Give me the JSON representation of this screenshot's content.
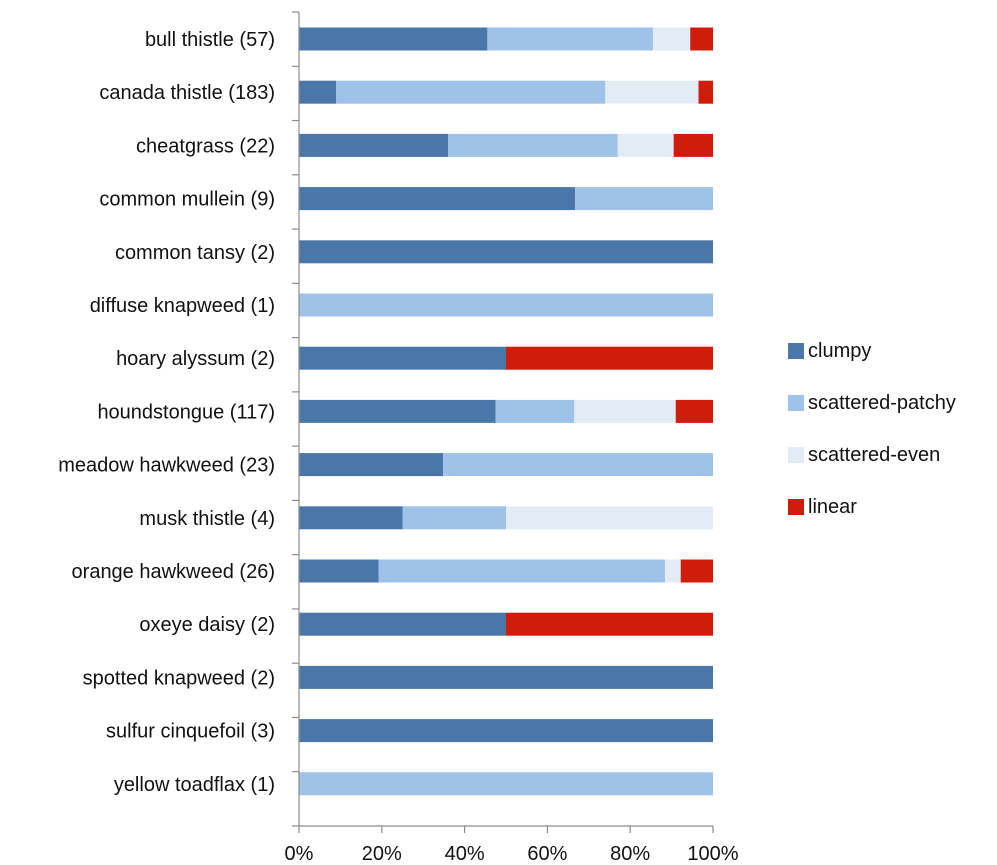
{
  "chart_data": {
    "type": "bar",
    "orientation": "horizontal",
    "stacked": "percent",
    "categories": [
      "bull thistle (57)",
      "canada thistle (183)",
      "cheatgrass (22)",
      "common mullein (9)",
      "common tansy (2)",
      "diffuse knapweed (1)",
      "hoary alyssum (2)",
      "houndstongue (117)",
      "meadow hawkweed (23)",
      "musk thistle (4)",
      "orange hawkweed (26)",
      "oxeye daisy (2)",
      "spotted knapweed (2)",
      "sulfur cinquefoil (3)",
      "yellow toadflax (1)"
    ],
    "series": [
      {
        "name": "clumpy",
        "color": "#4a76a8",
        "values": [
          45.5,
          9,
          36,
          66.7,
          100,
          0,
          50,
          47.5,
          34.8,
          25,
          19.2,
          50,
          100,
          100,
          0
        ]
      },
      {
        "name": "scattered-patchy",
        "color": "#9fc2e8",
        "values": [
          40,
          65,
          41,
          33.3,
          0,
          100,
          0,
          19,
          65.2,
          25,
          69.2,
          0,
          0,
          0,
          100
        ]
      },
      {
        "name": "scattered-even",
        "color": "#e3ecf5",
        "values": [
          9,
          22.5,
          13.5,
          0,
          0,
          0,
          0,
          24.5,
          0,
          50,
          3.8,
          0,
          0,
          0,
          0
        ]
      },
      {
        "name": "linear",
        "color": "#d01c0b",
        "values": [
          5.5,
          3.5,
          9.5,
          0,
          0,
          0,
          50,
          9,
          0,
          0,
          7.8,
          50,
          0,
          0,
          0
        ]
      }
    ],
    "x_ticks": [
      "0%",
      "20%",
      "40%",
      "60%",
      "80%",
      "100%"
    ],
    "xlim": [
      0,
      100
    ],
    "legend_position": "right",
    "grid": false
  }
}
